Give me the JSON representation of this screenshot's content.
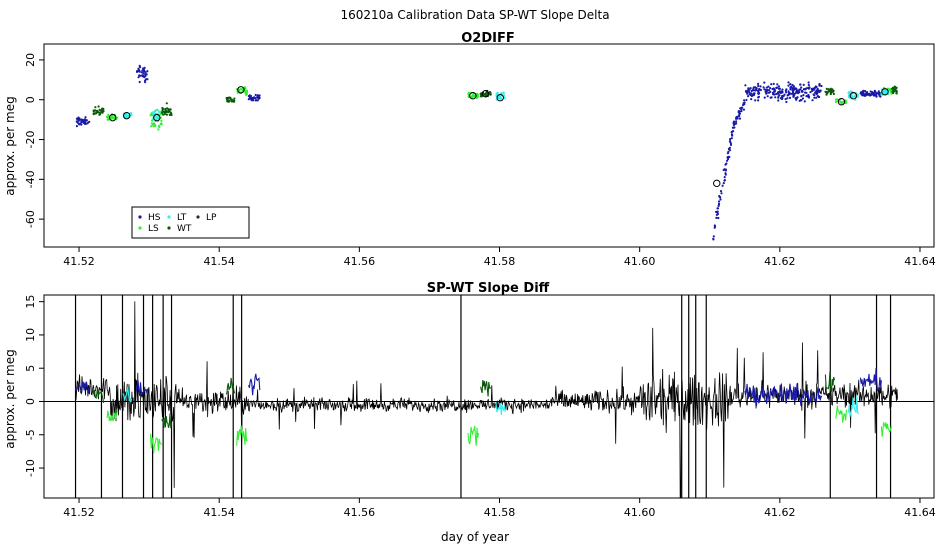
{
  "figure": {
    "title": "160210a   Calibration Data SP-WT Slope Delta",
    "xlabel": "day of year"
  },
  "colors": {
    "HS": "#1a1aa8",
    "LS": "#33ee33",
    "LT": "#33eeee",
    "WT": "#0a5a0a",
    "LP": "#1e3a1e",
    "line": "#000000"
  },
  "chart_data": [
    {
      "type": "scatter",
      "title": "O2DIFF",
      "ylabel": "approx. per meg",
      "xlim": [
        41.515,
        41.642
      ],
      "ylim": [
        -74,
        28
      ],
      "xticks": [
        41.52,
        41.54,
        41.56,
        41.58,
        41.6,
        41.62,
        41.64
      ],
      "yticks": [
        -60,
        -40,
        -20,
        0,
        20
      ],
      "legend": {
        "position": "bottom-left",
        "entries": [
          {
            "name": "HS",
            "series": "HS"
          },
          {
            "name": "LS",
            "series": "LS"
          },
          {
            "name": "LT",
            "series": "LT"
          },
          {
            "name": "WT",
            "series": "WT"
          },
          {
            "name": "LP",
            "series": "LP"
          }
        ]
      },
      "series": [
        {
          "name": "HS",
          "clusters": [
            {
              "x": [
                41.5195,
                41.5215
              ],
              "y": -11,
              "spread": 3
            },
            {
              "x": [
                41.5282,
                41.5298
              ],
              "y": 13,
              "spread": 6
            },
            {
              "x": [
                41.5442,
                41.5458
              ],
              "y": 1,
              "spread": 2
            },
            {
              "x": [
                41.6105,
                41.6135
              ],
              "y": -40,
              "spread": 6,
              "trend": [
                -68,
                -12
              ]
            },
            {
              "x": [
                41.6135,
                41.615
              ],
              "y": -6,
              "spread": 4,
              "trend": [
                -12,
                -1
              ]
            },
            {
              "x": [
                41.615,
                41.626
              ],
              "y": 4,
              "spread": 6
            },
            {
              "x": [
                41.6315,
                41.633
              ],
              "y": 3,
              "spread": 2
            },
            {
              "x": [
                41.633,
                41.6345
              ],
              "y": 3,
              "spread": 2
            }
          ]
        },
        {
          "name": "LS",
          "clusters": [
            {
              "x": [
                41.524,
                41.5255
              ],
              "y": -9,
              "spread": 2
            },
            {
              "x": [
                41.5302,
                41.5318
              ],
              "y": -10,
              "spread": 8
            },
            {
              "x": [
                41.5425,
                41.544
              ],
              "y": 4,
              "spread": 3
            },
            {
              "x": [
                41.5755,
                41.577
              ],
              "y": 2,
              "spread": 2
            },
            {
              "x": [
                41.628,
                41.6295
              ],
              "y": -1,
              "spread": 2
            },
            {
              "x": [
                41.6345,
                41.636
              ],
              "y": 4,
              "spread": 3
            }
          ]
        },
        {
          "name": "LT",
          "clusters": [
            {
              "x": [
                41.5262,
                41.5275
              ],
              "y": -8,
              "spread": 2
            },
            {
              "x": [
                41.5305,
                41.5315
              ],
              "y": -8,
              "spread": 5
            },
            {
              "x": [
                41.5795,
                41.5808
              ],
              "y": 2,
              "spread": 3
            },
            {
              "x": [
                41.6298,
                41.6312
              ],
              "y": 2,
              "spread": 3
            },
            {
              "x": [
                41.6345,
                41.6355
              ],
              "y": 4,
              "spread": 2
            }
          ]
        },
        {
          "name": "WT",
          "clusters": [
            {
              "x": [
                41.522,
                41.5235
              ],
              "y": -6,
              "spread": 3
            },
            {
              "x": [
                41.5318,
                41.5332
              ],
              "y": -6,
              "spread": 5
            },
            {
              "x": [
                41.541,
                41.5422
              ],
              "y": 0,
              "spread": 2
            },
            {
              "x": [
                41.5773,
                41.5788
              ],
              "y": 3,
              "spread": 2
            },
            {
              "x": [
                41.6265,
                41.6278
              ],
              "y": 4,
              "spread": 2
            },
            {
              "x": [
                41.636,
                41.6368
              ],
              "y": 5,
              "spread": 3
            }
          ]
        },
        {
          "name": "LP",
          "clusters": []
        }
      ],
      "means": [
        {
          "x": 41.5248,
          "y": -9
        },
        {
          "x": 41.5268,
          "y": -8
        },
        {
          "x": 41.5311,
          "y": -9
        },
        {
          "x": 41.5431,
          "y": 5
        },
        {
          "x": 41.5762,
          "y": 2
        },
        {
          "x": 41.578,
          "y": 3
        },
        {
          "x": 41.5801,
          "y": 1
        },
        {
          "x": 41.611,
          "y": -42
        },
        {
          "x": 41.6288,
          "y": -1
        },
        {
          "x": 41.6305,
          "y": 2
        },
        {
          "x": 41.635,
          "y": 4
        }
      ]
    },
    {
      "type": "line",
      "title": "SP-WT Slope Diff",
      "ylabel": "approx. per meg",
      "xlim": [
        41.515,
        41.642
      ],
      "ylim": [
        -14.5,
        16
      ],
      "xticks": [
        41.52,
        41.54,
        41.56,
        41.58,
        41.6,
        41.62,
        41.64
      ],
      "yticks": [
        -10,
        -5,
        0,
        5,
        10,
        15
      ],
      "zero_line": 0,
      "line_x_range": [
        41.5195,
        41.6368
      ],
      "spikes": [
        41.5195,
        41.5232,
        41.5262,
        41.5292,
        41.5305,
        41.532,
        41.5332,
        41.542,
        41.5432,
        41.5745,
        41.606,
        41.607,
        41.608,
        41.6095,
        41.6272,
        41.6338,
        41.6358
      ],
      "segments": [
        {
          "x": [
            41.5195,
            41.5245
          ],
          "amp": 2.5,
          "offset": 2
        },
        {
          "x": [
            41.5245,
            41.534
          ],
          "amp": 6,
          "offset": 0
        },
        {
          "x": [
            41.534,
            41.544
          ],
          "amp": 3,
          "offset": 0
        },
        {
          "x": [
            41.544,
            41.587
          ],
          "amp": 1.5,
          "offset": -0.5
        },
        {
          "x": [
            41.587,
            41.6
          ],
          "amp": 2.5,
          "offset": 0
        },
        {
          "x": [
            41.6,
            41.613
          ],
          "amp": 6,
          "offset": 0
        },
        {
          "x": [
            41.613,
            41.6368
          ],
          "amp": 2.8,
          "offset": 1
        }
      ],
      "colored_overlays": [
        {
          "series": "HS",
          "x": [
            41.5195,
            41.5215
          ],
          "y": 2
        },
        {
          "series": "WT",
          "x": [
            41.522,
            41.5235
          ],
          "y": 1
        },
        {
          "series": "LS",
          "x": [
            41.524,
            41.5255
          ],
          "y": -2
        },
        {
          "series": "LT",
          "x": [
            41.5262,
            41.5275
          ],
          "y": 1
        },
        {
          "series": "HS",
          "x": [
            41.5282,
            41.5298
          ],
          "y": 2
        },
        {
          "series": "LS",
          "x": [
            41.5302,
            41.5318
          ],
          "y": -6
        },
        {
          "series": "WT",
          "x": [
            41.5318,
            41.5332
          ],
          "y": -3
        },
        {
          "series": "WT",
          "x": [
            41.541,
            41.5422
          ],
          "y": 2
        },
        {
          "series": "LS",
          "x": [
            41.5425,
            41.544
          ],
          "y": -5
        },
        {
          "series": "HS",
          "x": [
            41.5442,
            41.5458
          ],
          "y": 3
        },
        {
          "series": "LS",
          "x": [
            41.5755,
            41.577
          ],
          "y": -5
        },
        {
          "series": "WT",
          "x": [
            41.5773,
            41.5788
          ],
          "y": 2
        },
        {
          "series": "LT",
          "x": [
            41.5795,
            41.5808
          ],
          "y": -1
        },
        {
          "series": "HS",
          "x": [
            41.615,
            41.626
          ],
          "y": 1
        },
        {
          "series": "WT",
          "x": [
            41.6265,
            41.6278
          ],
          "y": 3
        },
        {
          "series": "LS",
          "x": [
            41.628,
            41.6295
          ],
          "y": -2
        },
        {
          "series": "LT",
          "x": [
            41.6298,
            41.6312
          ],
          "y": -1
        },
        {
          "series": "HS",
          "x": [
            41.6315,
            41.6345
          ],
          "y": 3
        },
        {
          "series": "LS",
          "x": [
            41.6345,
            41.636
          ],
          "y": -4
        }
      ]
    }
  ]
}
